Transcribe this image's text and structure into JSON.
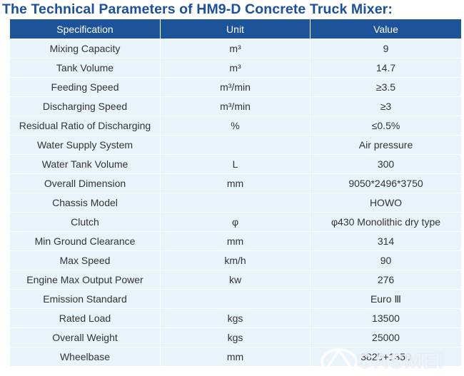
{
  "title": "The Technical Parameters of HM9-D Concrete Truck Mixer:",
  "table": {
    "headers": [
      "Specification",
      "Unit",
      "Value"
    ],
    "rows": [
      [
        "Mixing Capacity",
        "m³",
        "9"
      ],
      [
        "Tank Volume",
        "m³",
        "14.7"
      ],
      [
        "Feeding Speed",
        "m³/min",
        "≥3.5"
      ],
      [
        "Discharging Speed",
        "m³/min",
        "≥3"
      ],
      [
        "Residual Ratio of Discharging",
        "%",
        "≤0.5%"
      ],
      [
        "Water Supply System",
        "",
        "Air pressure"
      ],
      [
        "Water Tank Volume",
        "L",
        "300"
      ],
      [
        "Overall Dimension",
        "mm",
        "9050*2496*3750"
      ],
      [
        "Chassis Model",
        "",
        "HOWO"
      ],
      [
        "Clutch",
        "φ",
        "φ430 Monolithic dry type"
      ],
      [
        "Min Ground Clearance",
        "mm",
        "314"
      ],
      [
        "Max Speed",
        "km/h",
        "90"
      ],
      [
        "Engine Max Output Power",
        "kw",
        "276"
      ],
      [
        "Emission Standard",
        "",
        "Euro Ⅲ"
      ],
      [
        "Rated Load",
        "kgs",
        "13500"
      ],
      [
        "Overall Weight",
        "kgs",
        "25000"
      ],
      [
        "Wheelbase",
        "mm",
        "3825+1350"
      ]
    ]
  },
  "watermark": {
    "text": "CASMEI",
    "logo_icon": "casmei-logo-icon"
  },
  "colors": {
    "title": "#1b4fa0",
    "header_bg": "#1c5399",
    "row_bg": "#e9f3fa",
    "text": "#333333"
  }
}
